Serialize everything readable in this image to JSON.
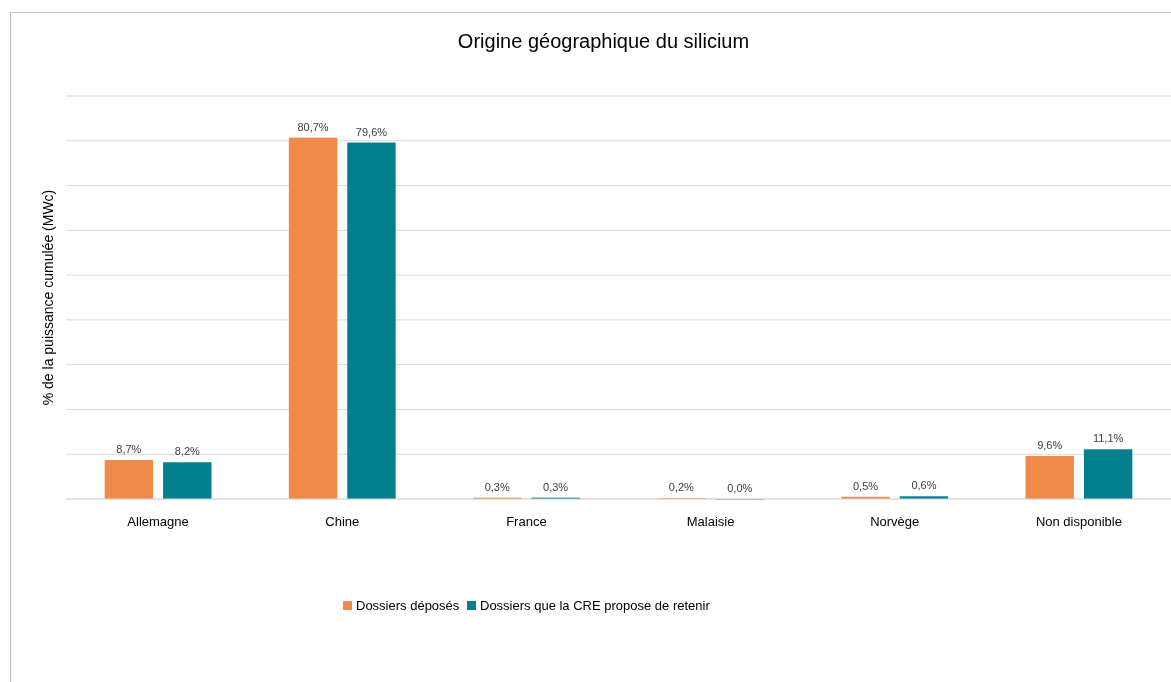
{
  "chart_data": {
    "type": "bar",
    "title": "Origine géographique du silicium",
    "ylabel": "% de la puissance cumulée (MWc)",
    "categories": [
      "Allemagne",
      "Chine",
      "France",
      "Malaisie",
      "Norvège",
      "Non disponible"
    ],
    "series": [
      {
        "name": "Dossiers déposés",
        "color": "#f08a4b",
        "values": [
          8.7,
          80.7,
          0.3,
          0.2,
          0.5,
          9.6
        ],
        "value_labels": [
          "8,7%",
          "80,7%",
          "0,3%",
          "0,2%",
          "0,5%",
          "9,6%"
        ]
      },
      {
        "name": "Dossiers que la CRE propose de retenir",
        "color": "#00808f",
        "values": [
          8.2,
          79.6,
          0.3,
          0.0,
          0.6,
          11.1
        ],
        "value_labels": [
          "8,2%",
          "79,6%",
          "0,3%",
          "0,0%",
          "0,6%",
          "11,1%"
        ]
      }
    ],
    "ylim": [
      0,
      90
    ],
    "yticks": [
      {
        "value": 0,
        "label": null
      },
      {
        "value": 10,
        "label": null
      },
      {
        "value": 20,
        "label": null
      },
      {
        "value": 30,
        "label": null
      },
      {
        "value": 40,
        "label": null
      },
      {
        "value": 50,
        "label": null
      },
      {
        "value": 60,
        "label": null
      },
      {
        "value": 70,
        "label": null
      },
      {
        "value": 80,
        "label": null
      },
      {
        "value": 90,
        "label": null
      }
    ],
    "tick_labels": "x",
    "grid": "y",
    "legend": "bottom"
  }
}
